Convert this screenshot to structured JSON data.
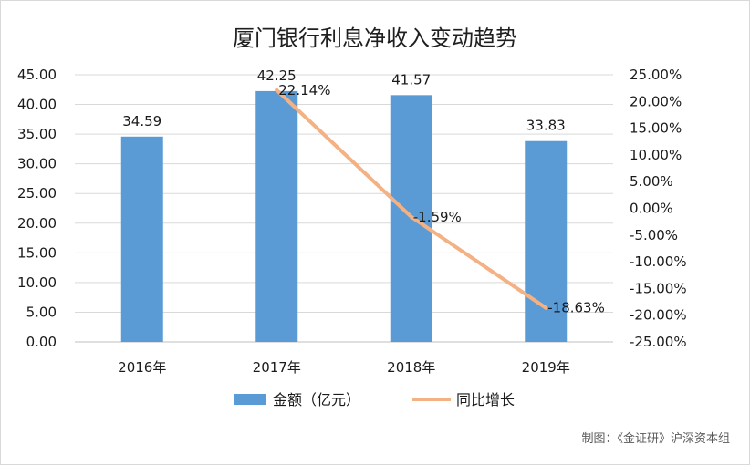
{
  "chart_data": {
    "type": "bar",
    "title": "厦门银行利息净收入变动趋势",
    "categories": [
      "2016年",
      "2017年",
      "2018年",
      "2019年"
    ],
    "series": [
      {
        "name": "金额（亿元）",
        "kind": "bar",
        "axis": "left",
        "color": "#5b9bd5",
        "values": [
          34.59,
          42.25,
          41.57,
          33.83
        ],
        "labels": [
          "34.59",
          "42.25",
          "41.57",
          "33.83"
        ]
      },
      {
        "name": "同比增长",
        "kind": "line",
        "axis": "right",
        "color": "#f4b183",
        "values": [
          null,
          22.14,
          -1.59,
          -18.63
        ],
        "labels": [
          "",
          "22.14%",
          "-1.59%",
          "-18.63%"
        ]
      }
    ],
    "y_left": {
      "min": 0,
      "max": 45,
      "step": 5,
      "ticks": [
        "0.00",
        "5.00",
        "10.00",
        "15.00",
        "20.00",
        "25.00",
        "30.00",
        "35.00",
        "40.00",
        "45.00"
      ]
    },
    "y_right": {
      "min": -25,
      "max": 25,
      "step": 5,
      "ticks": [
        "-25.00%",
        "-20.00%",
        "-15.00%",
        "-10.00%",
        "-5.00%",
        "0.00%",
        "5.00%",
        "10.00%",
        "15.00%",
        "20.00%",
        "25.00%"
      ]
    },
    "grid": true,
    "legend_position": "bottom"
  },
  "credit": "制图：《金证研》沪深资本组"
}
